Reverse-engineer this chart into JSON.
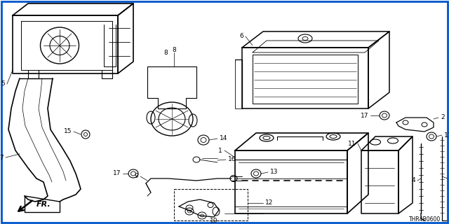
{
  "bg_color": "#ffffff",
  "border_color": "#0055cc",
  "diagram_code": "THR4B0600",
  "lw": 0.9,
  "label_fs": 6.5
}
